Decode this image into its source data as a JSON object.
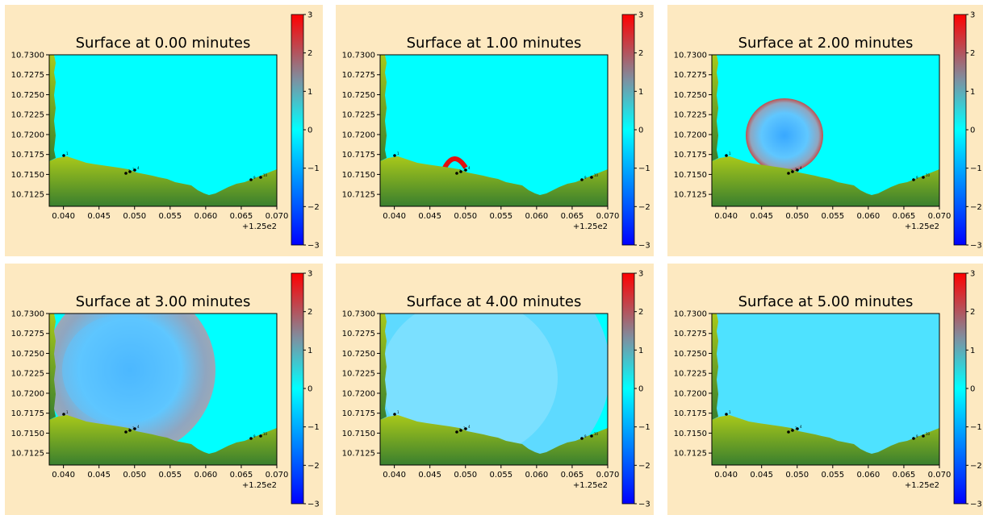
{
  "chart_data": [
    {
      "type": "heatmap",
      "title": "Surface at 0.00 minutes",
      "time_minutes": 0,
      "wave": null
    },
    {
      "type": "heatmap",
      "title": "Surface at 1.00 minutes",
      "time_minutes": 1,
      "wave": "small"
    },
    {
      "type": "heatmap",
      "title": "Surface at 2.00 minutes",
      "time_minutes": 2,
      "wave": "ring_medium"
    },
    {
      "type": "heatmap",
      "title": "Surface at 3.00 minutes",
      "time_minutes": 3,
      "wave": "ring_large"
    },
    {
      "type": "heatmap",
      "title": "Surface at 4.00 minutes",
      "time_minutes": 4,
      "wave": "spread"
    },
    {
      "type": "heatmap",
      "title": "Surface at 5.00 minutes",
      "time_minutes": 5,
      "wave": "diffuse"
    }
  ],
  "axes": {
    "x_ticks": [
      "0.040",
      "0.045",
      "0.050",
      "0.055",
      "0.060",
      "0.065",
      "0.070"
    ],
    "x_offset": "+1.25e2",
    "xlim": [
      0.038,
      0.07
    ],
    "y_ticks": [
      "10.7300",
      "10.7275",
      "10.7250",
      "10.7225",
      "10.7200",
      "10.7175",
      "10.7150",
      "10.7125"
    ],
    "ylim": [
      10.711,
      10.73
    ]
  },
  "colorbar": {
    "ticks": [
      "3",
      "2",
      "1",
      "0",
      "−1",
      "−2",
      "−3"
    ],
    "range": [
      -3,
      3
    ],
    "colors": [
      "#0000ff",
      "#00ffff",
      "#ff0000"
    ]
  },
  "colors": {
    "panel_bg": "#fde9c1",
    "sea": "#00ffff",
    "land_light": "#a8c81a",
    "land_dark": "#3a7f2e"
  },
  "gauges": [
    "1",
    "2",
    "3",
    "4",
    "9",
    "10"
  ]
}
